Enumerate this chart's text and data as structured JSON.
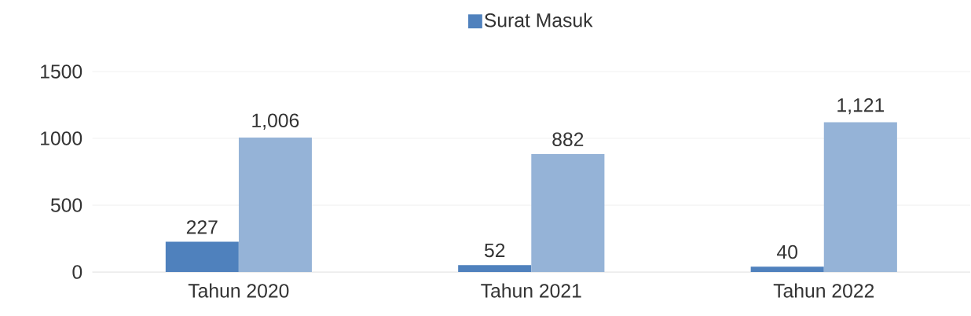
{
  "chart_data": {
    "type": "bar",
    "categories": [
      "Tahun 2020",
      "Tahun 2021",
      "Tahun 2022"
    ],
    "series": [
      {
        "name": "Surat Masuk",
        "color": "#4f81bd",
        "values": [
          227,
          52,
          40
        ],
        "value_labels": [
          "227",
          "52",
          "40"
        ]
      },
      {
        "color": "#95b3d7",
        "values": [
          1006,
          882,
          1121
        ],
        "value_labels": [
          "1,006",
          "882",
          "1,121"
        ]
      }
    ],
    "ylim": [
      0,
      1500
    ],
    "yticks": [
      0,
      500,
      1000,
      1500
    ],
    "grid": "y",
    "legend": "top"
  }
}
